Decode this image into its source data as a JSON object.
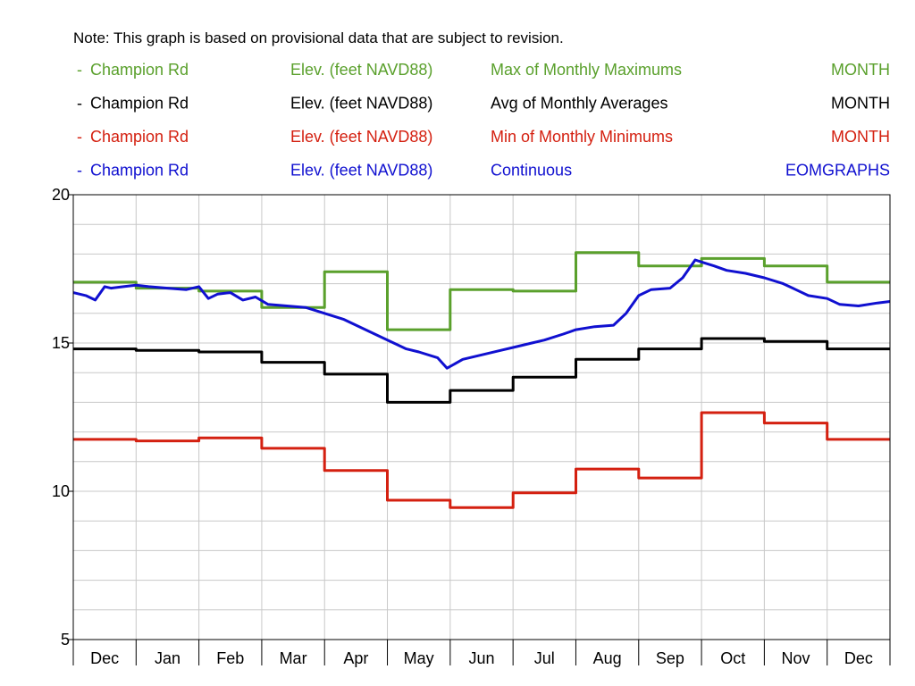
{
  "note": "Note: This graph is based on provisional data that are subject to revision.",
  "legend": [
    {
      "dash": "-",
      "site": "Champion Rd",
      "param": "Elev. (feet NAVD88)",
      "stat": "Max of Monthly Maximums",
      "interval": "MONTH",
      "color": "#5aa02c"
    },
    {
      "dash": "-",
      "site": "Champion Rd",
      "param": "Elev. (feet NAVD88)",
      "stat": "Avg of Monthly Averages",
      "interval": "MONTH",
      "color": "#000000"
    },
    {
      "dash": "-",
      "site": "Champion Rd",
      "param": "Elev. (feet NAVD88)",
      "stat": "Min of Monthly Minimums",
      "interval": "MONTH",
      "color": "#d42010"
    },
    {
      "dash": "-",
      "site": "Champion Rd",
      "param": "Elev. (feet NAVD88)",
      "stat": "Continuous",
      "interval": "EOMGRAPHS",
      "color": "#1010d0"
    }
  ],
  "chart_data": {
    "type": "line",
    "categories": [
      "Dec",
      "Jan",
      "Feb",
      "Mar",
      "Apr",
      "May",
      "Jun",
      "Jul",
      "Aug",
      "Sep",
      "Oct",
      "Nov",
      "Dec"
    ],
    "ylim": [
      5,
      20
    ],
    "yticks": [
      5,
      10,
      15,
      20
    ],
    "grid": true,
    "series": [
      {
        "name": "Max of Monthly Maximums",
        "color": "#5aa02c",
        "step": true,
        "values": [
          17.05,
          16.85,
          16.75,
          16.2,
          17.4,
          15.45,
          16.8,
          16.75,
          18.05,
          17.6,
          17.85,
          17.6,
          17.05
        ]
      },
      {
        "name": "Avg of Monthly Averages",
        "color": "#000000",
        "step": true,
        "values": [
          14.8,
          14.75,
          14.7,
          14.35,
          13.95,
          13.0,
          13.4,
          13.85,
          14.45,
          14.8,
          15.15,
          15.05,
          14.8
        ]
      },
      {
        "name": "Min of Monthly Minimums",
        "color": "#d42010",
        "step": true,
        "values": [
          11.75,
          11.7,
          11.8,
          11.45,
          10.7,
          9.7,
          9.45,
          9.95,
          10.75,
          10.45,
          12.65,
          12.3,
          11.75
        ]
      },
      {
        "name": "Continuous",
        "color": "#1010d0",
        "step": false,
        "x": [
          0.0,
          0.2,
          0.35,
          0.5,
          0.6,
          0.8,
          1.0,
          1.2,
          1.5,
          1.8,
          2.0,
          2.15,
          2.3,
          2.5,
          2.7,
          2.9,
          3.1,
          3.4,
          3.7,
          4.0,
          4.3,
          4.6,
          4.9,
          5.1,
          5.3,
          5.5,
          5.8,
          5.95,
          6.2,
          6.5,
          6.8,
          7.0,
          7.3,
          7.5,
          7.8,
          8.0,
          8.3,
          8.6,
          8.8,
          9.0,
          9.2,
          9.5,
          9.7,
          9.9,
          10.05,
          10.2,
          10.4,
          10.7,
          11.0,
          11.3,
          11.5,
          11.7,
          12.0,
          12.2,
          12.5,
          12.8,
          13.0
        ],
        "values": [
          16.7,
          16.6,
          16.45,
          16.9,
          16.85,
          16.9,
          16.95,
          16.9,
          16.85,
          16.8,
          16.9,
          16.5,
          16.65,
          16.7,
          16.45,
          16.55,
          16.3,
          16.25,
          16.2,
          16.0,
          15.8,
          15.5,
          15.2,
          15.0,
          14.8,
          14.7,
          14.5,
          14.15,
          14.45,
          14.6,
          14.75,
          14.85,
          15.0,
          15.1,
          15.3,
          15.45,
          15.55,
          15.6,
          16.0,
          16.6,
          16.8,
          16.85,
          17.2,
          17.8,
          17.7,
          17.6,
          17.45,
          17.35,
          17.2,
          17.0,
          16.8,
          16.6,
          16.5,
          16.3,
          16.25,
          16.35,
          16.4
        ]
      }
    ]
  }
}
